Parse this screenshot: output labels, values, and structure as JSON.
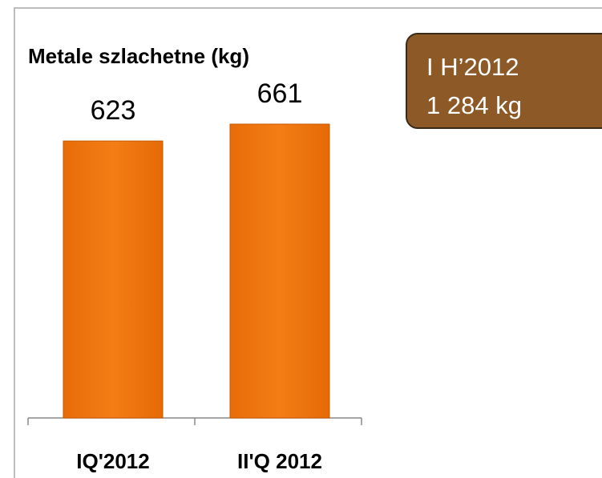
{
  "chart_data": {
    "type": "bar",
    "title": "Metale szlachetne (kg)",
    "categories": [
      "IQ'2012",
      "II'Q 2012"
    ],
    "values": [
      623,
      661
    ],
    "color": "#f07812",
    "annotations": [
      "I H’2012",
      "1 284 kg"
    ]
  }
}
